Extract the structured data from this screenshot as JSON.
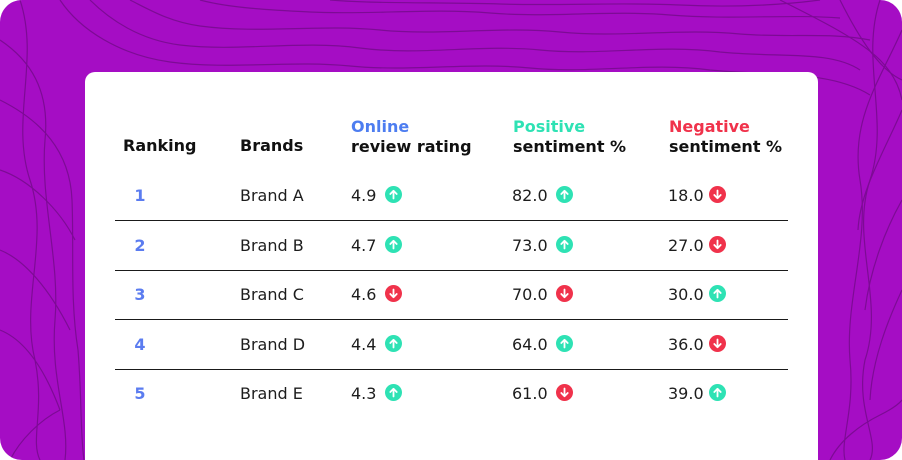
{
  "colors": {
    "background": "#a50dc4",
    "rank": "#5b7cf0",
    "online": "#4d7df0",
    "positive": "#2ee2b4",
    "negative": "#f0324b",
    "up_arrow": "#2ee2b4",
    "down_arrow": "#f0324b"
  },
  "table": {
    "headers": {
      "ranking": "Ranking",
      "brands": "Brands",
      "online_accent": "Online",
      "online_rest": "review rating",
      "positive_accent": "Positive",
      "positive_rest": "sentiment %",
      "negative_accent": "Negative",
      "negative_rest": "sentiment %"
    },
    "rows": [
      {
        "rank": "1",
        "brand": "Brand A",
        "rating": "4.9",
        "rating_trend": "up",
        "positive": "82.0",
        "positive_trend": "up",
        "negative": "18.0",
        "negative_trend": "down"
      },
      {
        "rank": "2",
        "brand": "Brand B",
        "rating": "4.7",
        "rating_trend": "up",
        "positive": "73.0",
        "positive_trend": "up",
        "negative": "27.0",
        "negative_trend": "down"
      },
      {
        "rank": "3",
        "brand": "Brand C",
        "rating": "4.6",
        "rating_trend": "down",
        "positive": "70.0",
        "positive_trend": "down",
        "negative": "30.0",
        "negative_trend": "up"
      },
      {
        "rank": "4",
        "brand": "Brand D",
        "rating": "4.4",
        "rating_trend": "up",
        "positive": "64.0",
        "positive_trend": "up",
        "negative": "36.0",
        "negative_trend": "down"
      },
      {
        "rank": "5",
        "brand": "Brand E",
        "rating": "4.3",
        "rating_trend": "up",
        "positive": "61.0",
        "positive_trend": "down",
        "negative": "39.0",
        "negative_trend": "up"
      }
    ]
  }
}
